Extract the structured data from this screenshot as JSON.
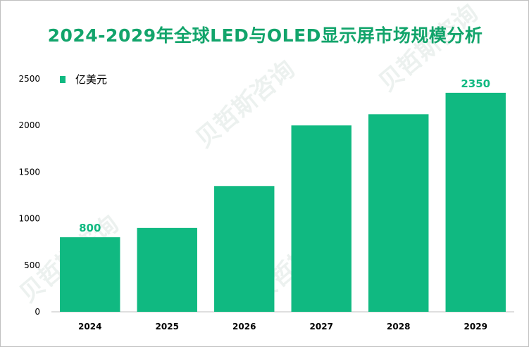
{
  "title": "2024-2029年全球LED与OLED显示屏市场规模分析",
  "watermark": "贝哲斯咨询",
  "colors": {
    "bar": "#10b981",
    "title": "#12a46b",
    "label": "#10b981"
  },
  "chart_data": {
    "type": "bar",
    "title": "2024-2029年全球LED与OLED显示屏市场规模分析",
    "categories": [
      "2024",
      "2025",
      "2026",
      "2027",
      "2028",
      "2029"
    ],
    "series": [
      {
        "name": "亿美元",
        "values": [
          800,
          900,
          1350,
          2000,
          2120,
          2350
        ]
      }
    ],
    "data_labels": [
      "800",
      "",
      "",
      "",
      "",
      "2350"
    ],
    "yticks": [
      0,
      500,
      1000,
      1500,
      2000,
      2500
    ],
    "ylim": [
      0,
      2500
    ],
    "grid": false,
    "legend": "top-left"
  }
}
